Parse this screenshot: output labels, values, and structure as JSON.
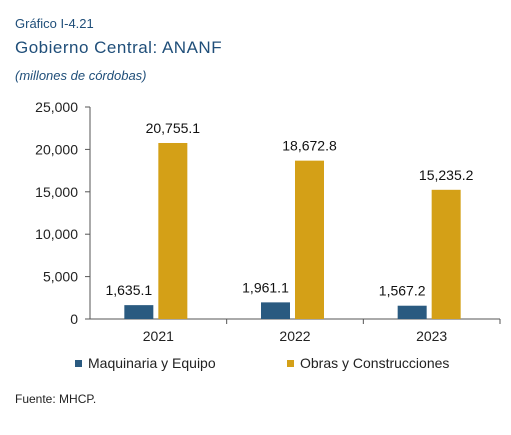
{
  "header": {
    "label": "Gráfico I-4.21",
    "title": "Gobierno Central: ANANF",
    "subtitle": "(millones de córdobas)"
  },
  "source": "Fuente: MHCP.",
  "colors": {
    "series1": "#2a5a80",
    "series2": "#d4a017"
  },
  "chart_data": {
    "type": "bar",
    "categories": [
      "2021",
      "2022",
      "2023"
    ],
    "series": [
      {
        "name": "Maquinaria y Equipo",
        "values": [
          1635.1,
          1961.1,
          1567.2
        ],
        "labels": [
          "1,635.1",
          "1,961.1",
          "1,567.2"
        ]
      },
      {
        "name": "Obras y Construcciones",
        "values": [
          20755.1,
          18672.8,
          15235.2
        ],
        "labels": [
          "20,755.1",
          "18,672.8",
          "15,235.2"
        ]
      }
    ],
    "yticks": [
      "0",
      "5,000",
      "10,000",
      "15,000",
      "20,000",
      "25,000"
    ],
    "ylim": [
      0,
      25000
    ],
    "grid": false,
    "legend_position": "bottom"
  }
}
